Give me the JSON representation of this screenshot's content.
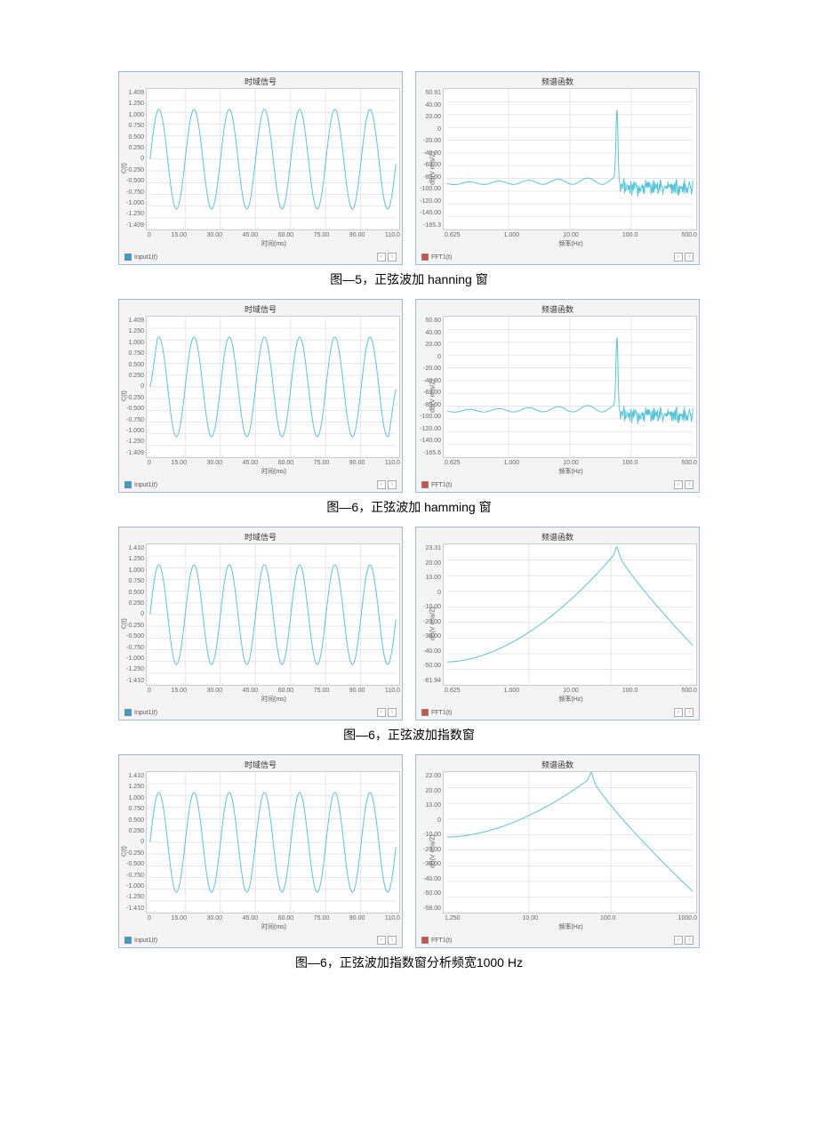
{
  "global": {
    "line_color": "#56c5da",
    "grid_color": "#e6e6e6",
    "plot_bg": "#ffffff",
    "panel_bg": "#f4f4f4",
    "panel_border": "#9bb9d9",
    "swatch_blue": "#2e9fd8",
    "swatch_red": "#d94a3f"
  },
  "captions": {
    "r1": "图—5，正弦波加 hanning 窗",
    "r2": "图—6，正弦波加 hamming 窗",
    "r3": "图—6，正弦波加指数窗",
    "r4": "图—6，正弦波加指数窗分析频宽1000 Hz"
  },
  "time_panel": {
    "title": "时域信号",
    "ylabel": "C(t)",
    "xlabel": "时间(ms)",
    "legend": "Input1(t)",
    "yticks": [
      "1.409",
      "1.250",
      "1.000",
      "0.750",
      "0.500",
      "0.250",
      "0",
      "-0.250",
      "-0.500",
      "-0.750",
      "-1.000",
      "-1.250",
      "-1.409"
    ],
    "xticks": [
      "0",
      "15.00",
      "30.00",
      "45.00",
      "60.00",
      "75.00",
      "90.00",
      "110.0"
    ],
    "ylim": [
      -1.409,
      1.409
    ],
    "xlim": [
      0,
      110
    ],
    "signal": {
      "type": "sine",
      "freq_hz": 63.5,
      "sample_ms": 110,
      "amplitude": 1.0,
      "points": 300
    }
  },
  "time_panel_hamming": {
    "yticks": [
      "1.409",
      "1.250",
      "1.000",
      "0.750",
      "0.500",
      "0.250",
      "0",
      "-0.250",
      "-0.500",
      "-0.750",
      "-1.000",
      "-1.250",
      "-1.409"
    ],
    "edge_amp": 0.45
  },
  "time_panel_exp": {
    "yticks": [
      "1.410",
      "1.250",
      "1.000",
      "0.750",
      "0.500",
      "0.250",
      "0",
      "-0.250",
      "-0.500",
      "-0.750",
      "-1.000",
      "-1.250",
      "-1.410"
    ]
  },
  "freq_panel_hanning": {
    "title": "频谱函数",
    "ylabel": "dB(V rms/Z)",
    "xlabel": "频率(Hz)",
    "legend": "FFT1(t)",
    "yticks": [
      "50.91",
      "40.00",
      "20.00",
      "0",
      "-20.00",
      "-40.00",
      "-60.00",
      "-80.00",
      "-100.00",
      "-120.00",
      "-140.00",
      "-165.3"
    ],
    "xticks": [
      "0.625",
      "1.000",
      "10.00",
      "100.0",
      "500.0"
    ],
    "ylim": [
      -165.3,
      50.91
    ],
    "xlim_log": [
      0.625,
      500
    ],
    "peak_x": 63.5,
    "peak_y": 20,
    "noise_floor": -100,
    "lobe_dip": -95,
    "noise_jitter": 14
  },
  "freq_panel_hamming": {
    "title": "频谱函数",
    "yticks": [
      "50.60",
      "40.00",
      "20.00",
      "0",
      "-20.00",
      "-40.00",
      "-60.00",
      "-80.00",
      "-100.00",
      "-120.00",
      "-140.00",
      "-165.6"
    ],
    "xticks": [
      "0.625",
      "1.000",
      "10.00",
      "100.0",
      "500.0"
    ],
    "ylim": [
      -165.6,
      50.6
    ],
    "xlim_log": [
      0.625,
      500
    ],
    "peak_x": 63.5,
    "peak_y": 20,
    "noise_floor": -100,
    "lobe_floor": -80,
    "noise_jitter": 14
  },
  "freq_panel_exp500": {
    "title": "频谱函数",
    "yticks": [
      "23.31",
      "20.00",
      "10.00",
      "0",
      "-10.00",
      "-20.00",
      "-30.00",
      "-40.00",
      "-50.00",
      "-61.94"
    ],
    "xticks": [
      "0.625",
      "1.000",
      "10.00",
      "100.0",
      "500.0"
    ],
    "ylim": [
      -61.94,
      23.31
    ],
    "xlim_log": [
      0.625,
      500
    ],
    "peak_x": 63.5,
    "peak_y": 19,
    "left_start": -48,
    "right_end": -38
  },
  "freq_panel_exp1000": {
    "title": "频谱函数",
    "yticks": [
      "22.00",
      "20.00",
      "10.00",
      "0",
      "-10.00",
      "-20.00",
      "-30.00",
      "-40.00",
      "-50.00",
      "-58.00"
    ],
    "xticks": [
      "1.250",
      "10.00",
      "100.0",
      "1000.0"
    ],
    "ylim": [
      -58.0,
      22.0
    ],
    "xlim_log": [
      1.25,
      1000
    ],
    "peak_x": 63.5,
    "peak_y": 19,
    "left_start": -15,
    "right_end": -46
  }
}
